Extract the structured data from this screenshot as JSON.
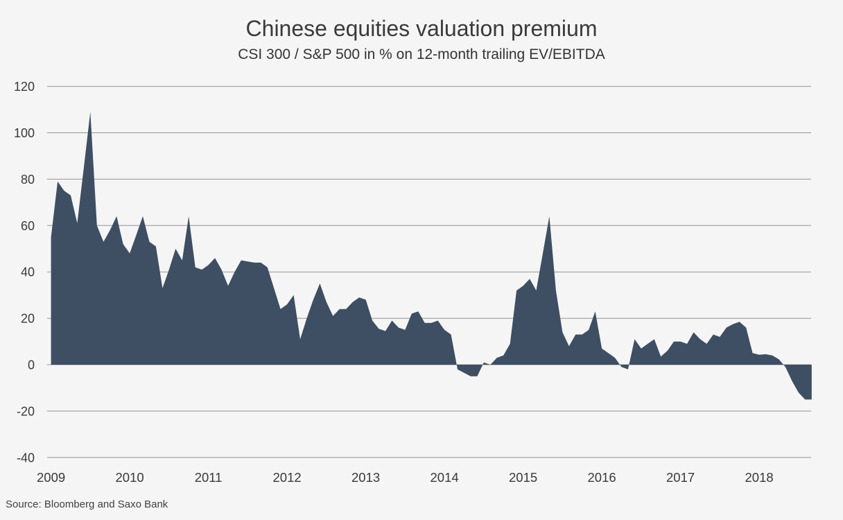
{
  "chart_data": {
    "type": "area",
    "title": "Chinese equities valuation premium",
    "subtitle": "CSI 300 / S&P 500 in % on 12-month trailing EV/EBITDA",
    "source": "Source: Bloomberg and Saxo Bank",
    "xlabel": "",
    "ylabel": "",
    "ylim": [
      -40,
      120
    ],
    "yticks": [
      120,
      100,
      80,
      60,
      40,
      20,
      0,
      -20,
      -40
    ],
    "xticks": [
      "2009",
      "2010",
      "2011",
      "2012",
      "2013",
      "2014",
      "2015",
      "2016",
      "2017",
      "2018"
    ],
    "grid": true,
    "baseline": 0,
    "legend": "none",
    "colors": {
      "area": "#3e4e63",
      "background": "#f5f5f6",
      "gridline": "#949494",
      "text": "#393939"
    },
    "series": [
      {
        "name": "CSI 300 / S&P 500 valuation premium (%)",
        "start": "2009-01",
        "frequency": "monthly",
        "values": [
          55,
          79,
          75,
          73,
          61,
          85,
          109,
          60,
          53,
          58,
          64,
          52,
          48,
          56,
          64,
          53,
          51,
          33,
          41,
          50,
          45,
          64,
          42,
          41,
          43,
          46,
          41,
          34,
          40,
          45,
          44.5,
          44,
          44,
          42,
          33,
          24,
          26,
          30,
          11,
          20,
          28,
          35,
          27,
          21,
          24,
          24,
          27,
          29,
          28,
          19,
          15.5,
          14.5,
          19,
          16,
          15,
          22,
          23,
          18,
          18,
          19,
          15,
          13,
          -2,
          -3.5,
          -5,
          -5,
          1,
          0,
          3,
          4,
          9,
          32,
          34,
          37,
          32,
          48,
          64,
          32,
          14,
          8,
          13,
          13,
          15,
          23,
          7,
          5,
          3,
          -1,
          -2,
          11,
          7,
          9,
          11,
          3.5,
          6,
          10,
          10,
          9,
          14,
          11,
          9,
          13,
          12,
          16,
          17.5,
          18.5,
          16,
          5,
          4.3,
          4.5,
          4,
          2.3,
          -1,
          -7,
          -12,
          -15,
          -15
        ]
      }
    ]
  }
}
